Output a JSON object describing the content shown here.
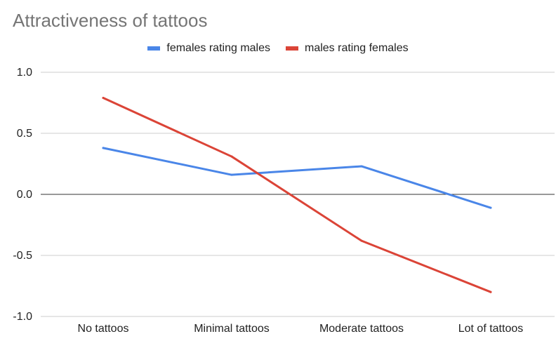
{
  "chart_data": {
    "type": "line",
    "title": "Attractiveness of tattoos",
    "xlabel": "",
    "ylabel": "",
    "categories": [
      "No tattoos",
      "Minimal tattoos",
      "Moderate tattoos",
      "Lot of tattoos"
    ],
    "series": [
      {
        "name": "females rating males",
        "color": "#4a86e8",
        "values": [
          0.38,
          0.16,
          0.23,
          -0.11
        ]
      },
      {
        "name": "males rating females",
        "color": "#db4437",
        "values": [
          0.79,
          0.31,
          -0.38,
          -0.8
        ]
      }
    ],
    "ylim": [
      -1.0,
      1.0
    ],
    "yticks": [
      "1.0",
      "0.5",
      "0.0",
      "-0.5",
      "-1.0"
    ],
    "ytick_values": [
      1.0,
      0.5,
      0.0,
      -0.5,
      -1.0
    ],
    "grid": true,
    "legend_position": "top"
  }
}
